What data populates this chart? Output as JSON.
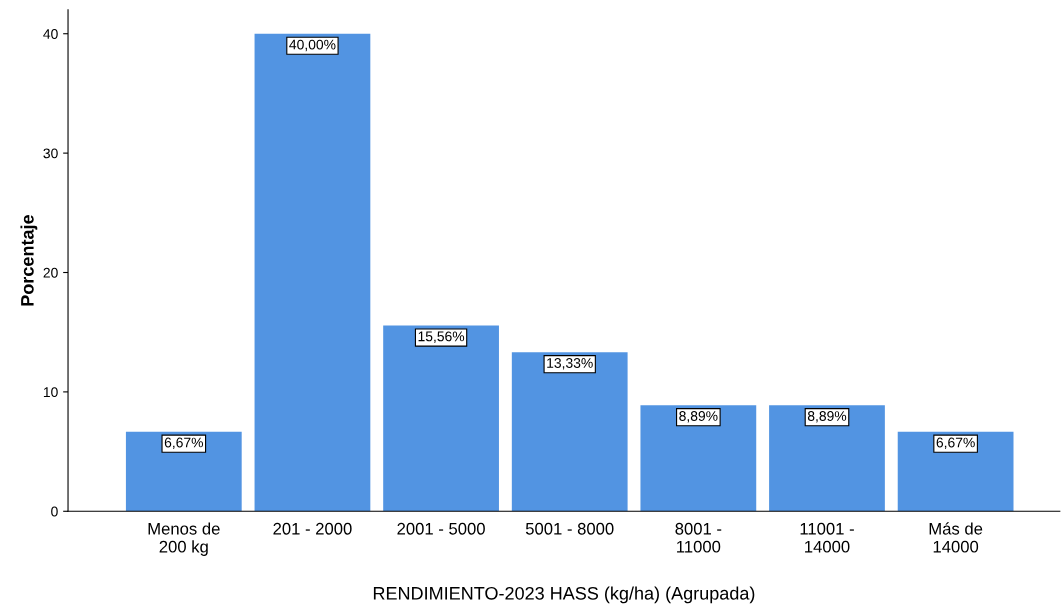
{
  "chart_data": {
    "type": "bar",
    "xlabel": "RENDIMIENTO-2023 HASS (kg/ha) (Agrupada)",
    "ylabel": "Porcentaje",
    "categories": [
      "Menos de\n200 kg",
      "201 - 2000",
      "2001 - 5000",
      "5001 - 8000",
      "8001 -\n11000",
      "11001 -\n14000",
      "Más de\n14000"
    ],
    "values": [
      6.67,
      40.0,
      15.56,
      13.33,
      8.89,
      8.89,
      6.67
    ],
    "value_labels": [
      "6,67%",
      "40,00%",
      "15,56%",
      "13,33%",
      "8,89%",
      "8,89%",
      "6,67%"
    ],
    "color": "#5294e2",
    "ylim": [
      0,
      42
    ],
    "yticks": [
      0,
      10,
      20,
      30,
      40
    ],
    "grid": false,
    "legend": false
  }
}
